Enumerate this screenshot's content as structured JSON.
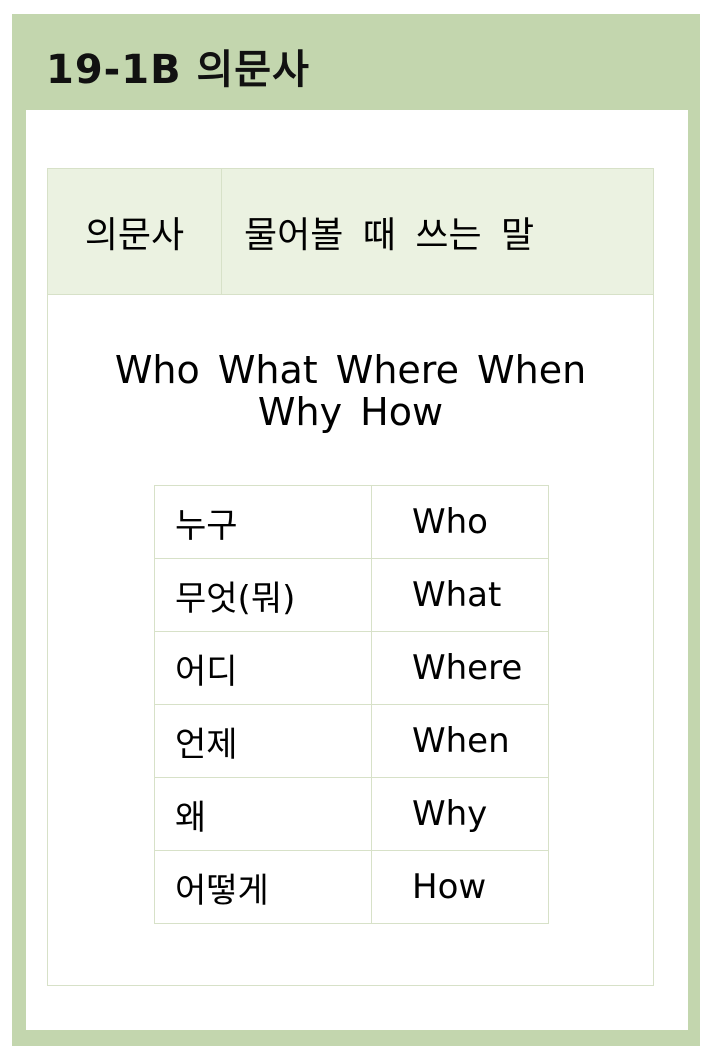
{
  "header": {
    "title": "19-1B 의문사"
  },
  "definition": {
    "term": "의문사",
    "meaning": "물어볼 때 쓰는 말"
  },
  "words": {
    "line1": "Who What Where When",
    "line2": "Why How"
  },
  "table": {
    "rows": [
      {
        "ko": "누구",
        "en": "Who"
      },
      {
        "ko": "무엇(뭐)",
        "en": "What"
      },
      {
        "ko": "어디",
        "en": "Where"
      },
      {
        "ko": "언제",
        "en": "When"
      },
      {
        "ko": "왜",
        "en": "Why"
      },
      {
        "ko": "어떻게",
        "en": "How"
      }
    ]
  },
  "colors": {
    "frame": "#c3d6ae",
    "definition_background": "#ebf2e1",
    "border": "#d7e1c8"
  }
}
